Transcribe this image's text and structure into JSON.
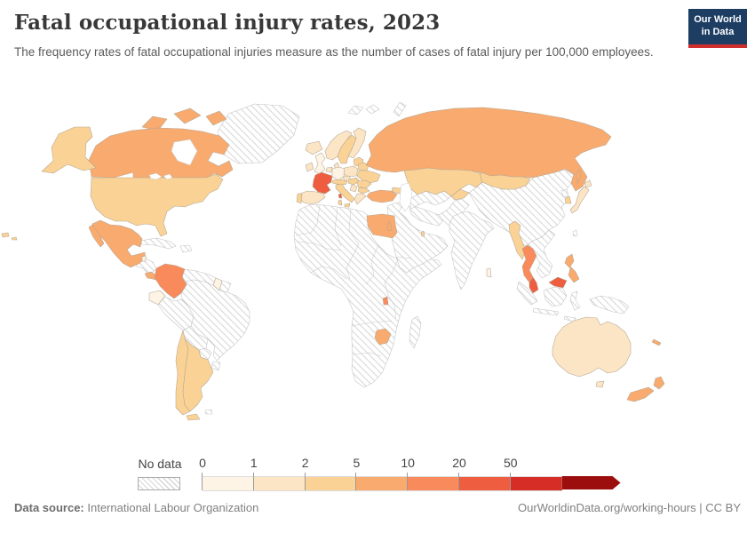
{
  "header": {
    "title": "Fatal occupational injury rates, 2023",
    "subtitle": "The frequency rates of fatal occupational injuries measure as the number of cases of fatal injury per 100,000 employees.",
    "logo": {
      "line1": "Our World",
      "line2": "in Data"
    }
  },
  "colors": {
    "brand_navy": "#1d3d63",
    "brand_red": "#cf2e2e",
    "title_text": "#383838",
    "subtitle_text": "#5b5b5b",
    "footer_text": "#818181"
  },
  "legend": {
    "no_data_label": "No data",
    "ticks": [
      "0",
      "1",
      "2",
      "5",
      "10",
      "20",
      "50",
      "100"
    ],
    "bin_colors": [
      "#fdf4e5",
      "#fbe5c4",
      "#fad295",
      "#f9aa6e",
      "#f98a5b",
      "#ee5d40",
      "#d62e27",
      "#9c0d0d"
    ]
  },
  "footer": {
    "source_label": "Data source:",
    "source_value": "International Labour Organization",
    "link": "OurWorldinData.org/working-hours",
    "separator": " | ",
    "license": "CC BY"
  },
  "chart_data": {
    "type": "choropleth",
    "title": "Fatal occupational injury rates, 2023",
    "subtitle": "The frequency rates of fatal occupational injuries measure as the number of cases of fatal injury per 100,000 employees.",
    "unit": "fatal occupational injuries per 100,000 employees",
    "year": 2023,
    "scale": {
      "bin_edges": [
        0,
        1,
        2,
        5,
        10,
        20,
        50,
        100
      ],
      "open_ended_top": true,
      "bin_labels": [
        "0-1",
        "1-2",
        "2-5",
        "5-10",
        "10-20",
        "20-50",
        "50-100",
        "100+"
      ],
      "bin_colors": [
        "#fdf4e5",
        "#fbe5c4",
        "#fad295",
        "#f9aa6e",
        "#f98a5b",
        "#ee5d40",
        "#d62e27",
        "#9c0d0d"
      ]
    },
    "no_data_style": "gray diagonal hatching",
    "countries": [
      {
        "name": "United States",
        "bin": "2-5"
      },
      {
        "name": "Canada",
        "bin": "5-10"
      },
      {
        "name": "Mexico",
        "bin": "5-10"
      },
      {
        "name": "Belize",
        "bin": "0-1"
      },
      {
        "name": "Costa Rica",
        "bin": "5-10"
      },
      {
        "name": "Panama",
        "bin": "5-10"
      },
      {
        "name": "Colombia",
        "bin": "10-20"
      },
      {
        "name": "Ecuador",
        "bin": "0-1"
      },
      {
        "name": "Guyana",
        "bin": "0-1"
      },
      {
        "name": "Chile",
        "bin": "2-5"
      },
      {
        "name": "Argentina",
        "bin": "2-5"
      },
      {
        "name": "United Kingdom",
        "bin": "0-1"
      },
      {
        "name": "Ireland",
        "bin": "1-2"
      },
      {
        "name": "Iceland",
        "bin": "1-2"
      },
      {
        "name": "Norway",
        "bin": "1-2"
      },
      {
        "name": "Sweden",
        "bin": "2-5"
      },
      {
        "name": "Finland",
        "bin": "1-2"
      },
      {
        "name": "Denmark",
        "bin": "1-2"
      },
      {
        "name": "Germany",
        "bin": "0-1"
      },
      {
        "name": "Netherlands",
        "bin": "1-2"
      },
      {
        "name": "Poland",
        "bin": "1-2"
      },
      {
        "name": "Baltic states",
        "bin": "2-5"
      },
      {
        "name": "Belarus",
        "bin": "2-5"
      },
      {
        "name": "Ukraine",
        "bin": "2-5"
      },
      {
        "name": "Czechia",
        "bin": "1-2"
      },
      {
        "name": "Austria",
        "bin": "2-5"
      },
      {
        "name": "Hungary",
        "bin": "2-5"
      },
      {
        "name": "Romania",
        "bin": "2-5"
      },
      {
        "name": "Bulgaria",
        "bin": "2-5"
      },
      {
        "name": "Serbia",
        "bin": "1-2"
      },
      {
        "name": "Greece",
        "bin": "1-2"
      },
      {
        "name": "Italy",
        "bin": "2-5"
      },
      {
        "name": "Spain",
        "bin": "1-2"
      },
      {
        "name": "Portugal",
        "bin": "2-5"
      },
      {
        "name": "France",
        "bin": "20-50"
      },
      {
        "name": "Turkey",
        "bin": "5-10"
      },
      {
        "name": "Georgia/Azerbaijan",
        "bin": "2-5"
      },
      {
        "name": "Russia",
        "bin": "5-10"
      },
      {
        "name": "Kazakhstan",
        "bin": "2-5"
      },
      {
        "name": "Kyrgyzstan",
        "bin": "2-5"
      },
      {
        "name": "Mongolia",
        "bin": "2-5"
      },
      {
        "name": "South Korea",
        "bin": "2-5"
      },
      {
        "name": "Japan",
        "bin": "1-2"
      },
      {
        "name": "Israel",
        "bin": "5-10"
      },
      {
        "name": "Qatar",
        "bin": "2-5"
      },
      {
        "name": "Egypt",
        "bin": "5-10"
      },
      {
        "name": "Zimbabwe",
        "bin": "5-10"
      },
      {
        "name": "Burundi",
        "bin": "10-20"
      },
      {
        "name": "Sri Lanka",
        "bin": "0-1"
      },
      {
        "name": "Myanmar",
        "bin": "2-5"
      },
      {
        "name": "Thailand",
        "bin": "10-20"
      },
      {
        "name": "Malaysia",
        "bin": "20-50"
      },
      {
        "name": "Philippines",
        "bin": "5-10"
      },
      {
        "name": "Australia",
        "bin": "1-2"
      },
      {
        "name": "New Zealand",
        "bin": "5-10"
      },
      {
        "name": "New Caledonia",
        "bin": "5-10"
      }
    ],
    "no_data_regions": [
      "Greenland",
      "Cuba",
      "Guatemala",
      "Honduras",
      "Nicaragua",
      "Venezuela",
      "Suriname",
      "Brazil",
      "Peru",
      "Bolivia",
      "Paraguay",
      "Uruguay",
      "most of Africa",
      "Madagascar",
      "Saudi Arabia and Middle East",
      "Iran",
      "Pakistan",
      "Afghanistan",
      "Central Asia",
      "India",
      "China",
      "North Korea",
      "Vietnam",
      "Laos",
      "Cambodia",
      "Indonesia",
      "Papua New Guinea"
    ]
  }
}
